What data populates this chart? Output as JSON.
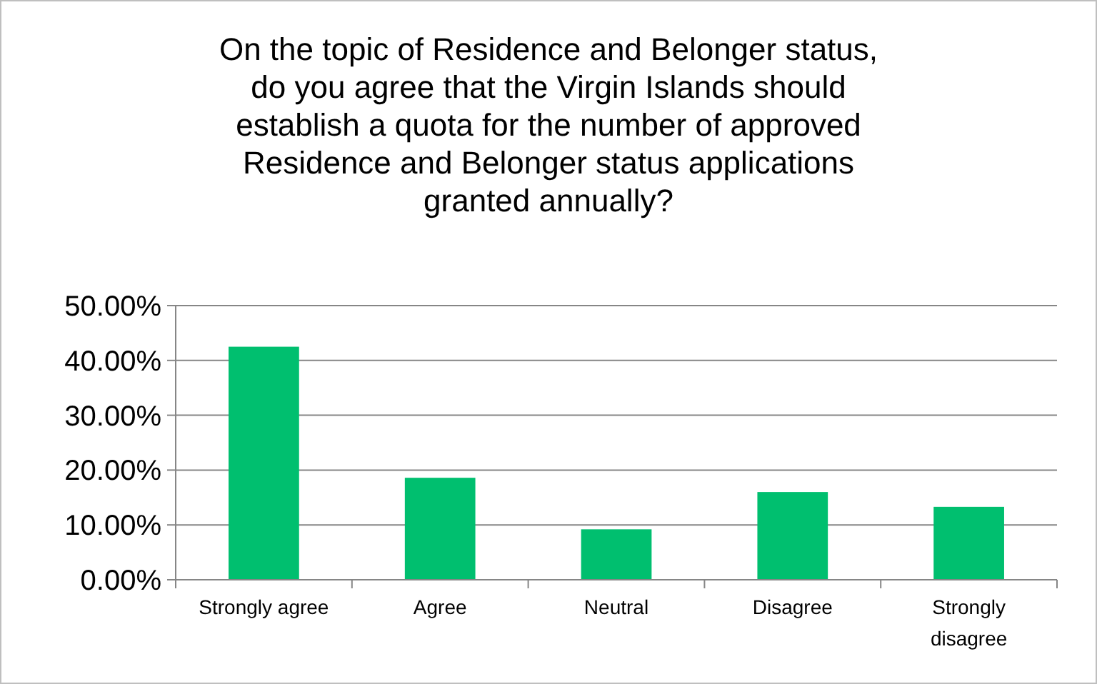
{
  "chart_data": {
    "type": "bar",
    "title": "On the topic of Residence and Belonger status, do you agree that the Virgin Islands should establish a quota for the number of approved Residence and Belonger status applications granted annually?",
    "categories": [
      "Strongly agree",
      "Agree",
      "Neutral",
      "Disagree",
      "Strongly disagree"
    ],
    "values": [
      42.5,
      18.6,
      9.2,
      16.0,
      13.3
    ],
    "color": "#00bf6f",
    "ylim": [
      0,
      50
    ],
    "yticks": [
      {
        "value": 0,
        "label": "0.00%"
      },
      {
        "value": 10,
        "label": "10.00%"
      },
      {
        "value": 20,
        "label": "20.00%"
      },
      {
        "value": 30,
        "label": "30.00%"
      },
      {
        "value": 40,
        "label": "40.00%"
      },
      {
        "value": 50,
        "label": "50.00%"
      }
    ],
    "grid": "y"
  }
}
